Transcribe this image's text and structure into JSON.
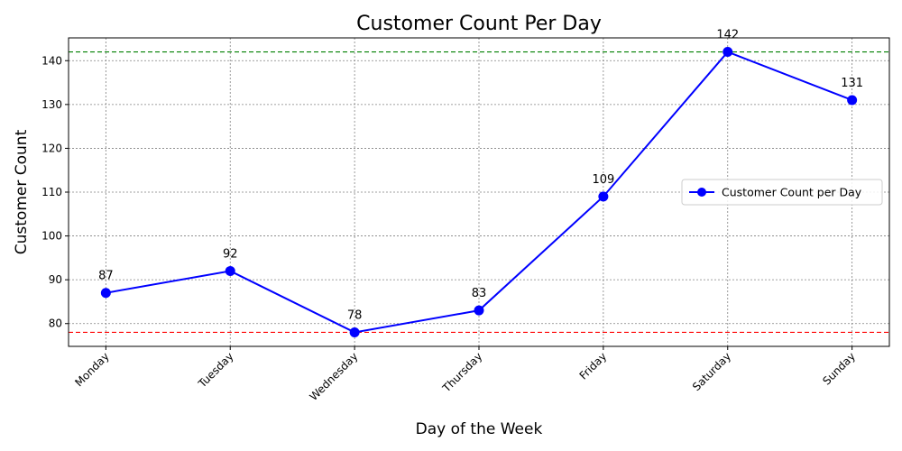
{
  "chart_data": {
    "type": "line",
    "title": "Customer Count Per Day",
    "xlabel": "Day of the Week",
    "ylabel": "Customer Count",
    "categories": [
      "Monday",
      "Tuesday",
      "Wednesday",
      "Thursday",
      "Friday",
      "Saturday",
      "Sunday"
    ],
    "series": [
      {
        "name": "Customer Count per Day",
        "values": [
          87,
          92,
          78,
          83,
          109,
          142,
          131
        ],
        "color": "#0000ff"
      }
    ],
    "ylim": [
      74.8,
      145.2
    ],
    "yticks": [
      80,
      90,
      100,
      110,
      120,
      130,
      140
    ],
    "grid": true,
    "legend_position": "right",
    "reference_lines": [
      {
        "value": 142,
        "color": "#008000",
        "style": "dashed"
      },
      {
        "value": 78,
        "color": "#ff0000",
        "style": "dashed"
      }
    ]
  }
}
